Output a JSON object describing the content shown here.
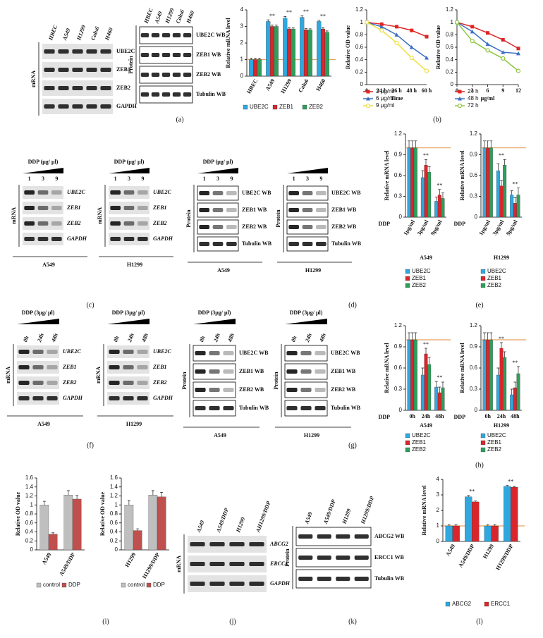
{
  "chart_data": [
    {
      "type": "bar",
      "ylabel": "Relative mRNA level",
      "categories": [
        "HBEC",
        "A549",
        "H1299",
        "Calu6",
        "H460"
      ],
      "series": [
        {
          "name": "UBE2C",
          "color": "#2ea8df",
          "values": [
            1,
            3.3,
            3.5,
            3.55,
            3.3
          ],
          "errors": [
            0.08,
            0.1,
            0.1,
            0.1,
            0.08
          ]
        },
        {
          "name": "ZEB1",
          "color": "#d9262c",
          "values": [
            1,
            3.0,
            2.85,
            2.8,
            2.85
          ],
          "errors": [
            0.08,
            0.08,
            0.08,
            0.08,
            0.08
          ]
        },
        {
          "name": "ZEB2",
          "color": "#2e9e5b",
          "values": [
            1,
            3.0,
            2.85,
            2.8,
            2.65
          ],
          "errors": [
            0.08,
            0.08,
            0.06,
            0.06,
            0.08
          ]
        }
      ],
      "ylim": [
        0,
        4
      ],
      "yticks": [
        0,
        1,
        2,
        3,
        4
      ],
      "reference_line": {
        "value": 1,
        "color": "#e8a15c"
      },
      "annotations": [
        {
          "text": "**",
          "category": "A549"
        },
        {
          "text": "**",
          "category": "H1299"
        },
        {
          "text": "**",
          "category": "Calu6"
        },
        {
          "text": "**",
          "category": "H460"
        }
      ]
    },
    {
      "type": "line",
      "ylabel": "Relative OD value",
      "xlabel": "Time",
      "categories": [
        "0",
        "24 h",
        "36 h",
        "48 h",
        "60 h"
      ],
      "ylim": [
        0,
        1.2
      ],
      "yticks": [
        0,
        0.2,
        0.4,
        0.6,
        0.8,
        1,
        1.2
      ],
      "series": [
        {
          "name": "3 μg/ml",
          "color": "#e02424",
          "marker": "square",
          "values": [
            1,
            0.97,
            0.93,
            0.87,
            0.77
          ]
        },
        {
          "name": "6 μg/ml",
          "color": "#3a6fc4",
          "marker": "triangle",
          "values": [
            1,
            0.93,
            0.8,
            0.6,
            0.43
          ]
        },
        {
          "name": "9 μg/ml",
          "color": "#eee040",
          "marker": "circle",
          "values": [
            1,
            0.87,
            0.67,
            0.43,
            0.22
          ]
        }
      ]
    },
    {
      "type": "line",
      "ylabel": "Relative OD value",
      "xlabel": "μg/ml",
      "x": [
        0,
        3,
        6,
        9,
        12
      ],
      "xlim": [
        0,
        12
      ],
      "xticks": [
        0,
        3,
        6,
        9,
        12
      ],
      "ylim": [
        0,
        1.2
      ],
      "yticks": [
        0,
        0.2,
        0.4,
        0.6,
        0.8,
        1,
        1.2
      ],
      "series": [
        {
          "name": "24 h",
          "color": "#e02424",
          "marker": "square",
          "values": [
            1,
            0.93,
            0.83,
            0.72,
            0.58
          ]
        },
        {
          "name": "48 h",
          "color": "#3a6fc4",
          "marker": "triangle",
          "values": [
            1,
            0.85,
            0.65,
            0.52,
            0.5
          ]
        },
        {
          "name": "72 h",
          "color": "#8dc63f",
          "marker": "circle",
          "values": [
            1,
            0.7,
            0.55,
            0.42,
            0.22
          ]
        }
      ]
    },
    {
      "type": "bar",
      "ylabel": "Relative mRNA level",
      "category_label": "DDP",
      "xlabel": "A549",
      "categories": [
        "1μg/ml",
        "3μg/ml",
        "9μg/ml"
      ],
      "series": [
        {
          "name": "UBE2C",
          "color": "#2ea8df",
          "values": [
            1,
            0.57,
            0.23
          ],
          "errors": [
            0.1,
            0.1,
            0.06
          ]
        },
        {
          "name": "ZEB1",
          "color": "#d9262c",
          "values": [
            1,
            0.75,
            0.32
          ],
          "errors": [
            0.1,
            0.08,
            0.08
          ]
        },
        {
          "name": "ZEB2",
          "color": "#2e9e5b",
          "values": [
            1,
            0.65,
            0.27
          ],
          "errors": [
            0.1,
            0.08,
            0.08
          ]
        }
      ],
      "ylim": [
        0,
        1.2
      ],
      "yticks": [
        0,
        0.3,
        0.6,
        0.9,
        1.2
      ],
      "reference_line": {
        "value": 1,
        "color": "#e8a15c"
      },
      "annotations": [
        {
          "text": "**",
          "category": "3μg/ml"
        },
        {
          "text": "**",
          "category": "9μg/ml"
        }
      ]
    },
    {
      "type": "bar",
      "ylabel": "Relative mRNA level",
      "category_label": "DDP",
      "xlabel": "H1299",
      "categories": [
        "1μg/ml",
        "3μg/ml",
        "9μg/ml"
      ],
      "series": [
        {
          "name": "UBE2C",
          "color": "#2ea8df",
          "values": [
            1,
            0.67,
            0.32
          ],
          "errors": [
            0.1,
            0.1,
            0.06
          ]
        },
        {
          "name": "ZEB1",
          "color": "#d9262c",
          "values": [
            1,
            0.45,
            0.2
          ],
          "errors": [
            0.1,
            0.08,
            0.08
          ]
        },
        {
          "name": "ZEB2",
          "color": "#2e9e5b",
          "values": [
            1,
            0.75,
            0.32
          ],
          "errors": [
            0.1,
            0.08,
            0.1
          ]
        }
      ],
      "ylim": [
        0,
        1.2
      ],
      "yticks": [
        0,
        0.3,
        0.6,
        0.9,
        1.2
      ],
      "reference_line": {
        "value": 1,
        "color": "#e8a15c"
      },
      "annotations": [
        {
          "text": "**",
          "category": "3μg/ml"
        },
        {
          "text": "**",
          "category": "9μg/ml"
        }
      ]
    },
    {
      "type": "bar",
      "ylabel": "Relative mRNA level",
      "category_label": "DDP",
      "xlabel": "A549",
      "categories": [
        "0h",
        "24h",
        "48h"
      ],
      "series": [
        {
          "name": "UBE2C",
          "color": "#2ea8df",
          "values": [
            1,
            0.5,
            0.33
          ],
          "errors": [
            0.1,
            0.1,
            0.08
          ]
        },
        {
          "name": "ZEB1",
          "color": "#d9262c",
          "values": [
            1,
            0.8,
            0.25
          ],
          "errors": [
            0.1,
            0.08,
            0.08
          ]
        },
        {
          "name": "ZEB2",
          "color": "#2e9e5b",
          "values": [
            1,
            0.65,
            0.32
          ],
          "errors": [
            0.1,
            0.1,
            0.08
          ]
        }
      ],
      "ylim": [
        0,
        1.2
      ],
      "yticks": [
        0,
        0.3,
        0.6,
        0.9,
        1.2
      ],
      "reference_line": {
        "value": 1,
        "color": "#e8a15c"
      },
      "annotations": [
        {
          "text": "**",
          "category": "24h"
        },
        {
          "text": "**",
          "category": "48h"
        }
      ]
    },
    {
      "type": "bar",
      "ylabel": "Relative mRNA level",
      "category_label": "DDP",
      "xlabel": "H1299",
      "categories": [
        "0h",
        "24h",
        "48h"
      ],
      "series": [
        {
          "name": "UBE2C",
          "color": "#2ea8df",
          "values": [
            1,
            0.5,
            0.22
          ],
          "errors": [
            0.1,
            0.1,
            0.08
          ]
        },
        {
          "name": "ZEB1",
          "color": "#d9262c",
          "values": [
            1,
            0.88,
            0.32
          ],
          "errors": [
            0.1,
            0.08,
            0.08
          ]
        },
        {
          "name": "ZEB2",
          "color": "#2e9e5b",
          "values": [
            1,
            0.75,
            0.52
          ],
          "errors": [
            0.1,
            0.08,
            0.1
          ]
        }
      ],
      "ylim": [
        0,
        1.2
      ],
      "yticks": [
        0,
        0.3,
        0.6,
        0.9,
        1.2
      ],
      "reference_line": {
        "value": 1,
        "color": "#e8a15c"
      },
      "annotations": [
        {
          "text": "**",
          "category": "24h"
        },
        {
          "text": "**",
          "category": "48h"
        }
      ]
    },
    {
      "type": "bar",
      "ylabel": "Relative OD value",
      "categories": [
        "A549",
        "A549/DDP"
      ],
      "series": [
        {
          "name": "control",
          "color": "#bfbfbf",
          "values": [
            1,
            1.22
          ],
          "errors": [
            0.08,
            0.1
          ]
        },
        {
          "name": "DDP",
          "color": "#c0504d",
          "values": [
            0.35,
            1.13
          ],
          "errors": [
            0.03,
            0.08
          ]
        }
      ],
      "ylim": [
        0,
        1.6
      ],
      "yticks": [
        0,
        0.2,
        0.4,
        0.6,
        0.8,
        1,
        1.2,
        1.4,
        1.6
      ]
    },
    {
      "type": "bar",
      "ylabel": "Relative OD value",
      "categories": [
        "H1299",
        "H1299/DDP"
      ],
      "series": [
        {
          "name": "control",
          "color": "#bfbfbf",
          "values": [
            1,
            1.22
          ],
          "errors": [
            0.1,
            0.1
          ]
        },
        {
          "name": "DDP",
          "color": "#c0504d",
          "values": [
            0.43,
            1.18
          ],
          "errors": [
            0.04,
            0.1
          ]
        }
      ],
      "ylim": [
        0,
        1.6
      ],
      "yticks": [
        0,
        0.2,
        0.4,
        0.6,
        0.8,
        1,
        1.2,
        1.4,
        1.6
      ]
    },
    {
      "type": "bar",
      "ylabel": "Relative mRNA level",
      "categories": [
        "A549",
        "A549/DDP",
        "H1299",
        "H1299/DDP"
      ],
      "series": [
        {
          "name": "ABCG2",
          "color": "#2ea8df",
          "values": [
            1,
            2.88,
            1,
            3.55
          ],
          "errors": [
            0.08,
            0.08,
            0.08,
            0.06
          ]
        },
        {
          "name": "ERCC1",
          "color": "#d9262c",
          "values": [
            1,
            2.55,
            1,
            3.5
          ],
          "errors": [
            0.08,
            0.06,
            0.08,
            0.05
          ]
        }
      ],
      "ylim": [
        0,
        4
      ],
      "yticks": [
        0,
        1,
        2,
        3,
        4
      ],
      "reference_line": {
        "value": 1,
        "color": "#e8a15c"
      },
      "annotations": [
        {
          "text": "**",
          "category": "A549/DDP"
        },
        {
          "text": "**",
          "category": "H1299/DDP"
        }
      ]
    }
  ],
  "blots": [
    {
      "type_label": "mRNA",
      "lanes": [
        "HBEC",
        "A549",
        "H1299",
        "Calu6",
        "H460"
      ],
      "rows": [
        "UBE2C",
        "ZEB1",
        "ZEB2",
        "GAPDH"
      ]
    },
    {
      "type_label": "Protein",
      "lanes": [
        "HBEC",
        "A549",
        "H1299",
        "Calu6",
        "H460"
      ],
      "rows": [
        "UBE2C WB",
        "ZEB1 WB",
        "ZEB2 WB",
        "Tubulin WB"
      ]
    },
    {
      "type_label": "mRNA",
      "dose_label": "DDP (μg/ μl)",
      "lanes": [
        "1",
        "3",
        "9"
      ],
      "rows": [
        "UBE2C",
        "ZEB1",
        "ZEB2",
        "GAPDH"
      ],
      "caption": "A549"
    },
    {
      "type_label": "mRNA",
      "dose_label": "DDP (μg/ μl)",
      "lanes": [
        "1",
        "3",
        "9"
      ],
      "rows": [
        "UBE2C",
        "ZEB1",
        "ZEB2",
        "GAPDH"
      ],
      "caption": "H1299"
    },
    {
      "type_label": "Protein",
      "dose_label": "DDP (μg/ μl)",
      "lanes": [
        "1",
        "3",
        "9"
      ],
      "rows": [
        "UBE2C WB",
        "ZEB1 WB",
        "ZEB2 WB",
        "Tubulin WB"
      ],
      "caption": "A549"
    },
    {
      "type_label": "Protein",
      "lanes": [
        "1",
        "3",
        "9"
      ],
      "rows": [
        "UBE2C WB",
        "ZEB1 WB",
        "ZEB2 WB",
        "Tubulin WB"
      ],
      "caption": "H1299"
    },
    {
      "type_label": "mRNA",
      "dose_label": "DDP (3μg/ μl)",
      "lanes": [
        "0h",
        "24h",
        "48h"
      ],
      "rows": [
        "UBE2C",
        "ZEB1",
        "ZEB2",
        "GAPDH"
      ],
      "caption": "A549"
    },
    {
      "type_label": "mRNA",
      "dose_label": "DDP (3μg/ μl)",
      "lanes": [
        "0h",
        "24h",
        "48h"
      ],
      "rows": [
        "UBE2C",
        "ZEB1",
        "ZEB2",
        "GAPDH"
      ],
      "caption": "H1299"
    },
    {
      "type_label": "Protein",
      "dose_label": "DDP (3μg/ μl)",
      "lanes": [
        "0h",
        "24h",
        "48h"
      ],
      "rows": [
        "UBE2C WB",
        "ZEB1 WB",
        "ZEB2 WB",
        "Tubulin WB"
      ],
      "caption": "A549"
    },
    {
      "type_label": "Protein",
      "dose_label": "DDP (3μg/ μl)",
      "lanes": [
        "0h",
        "24h",
        "48h"
      ],
      "rows": [
        "UBE2C WB",
        "ZEB1 WB",
        "ZEB2 WB",
        "Tubulin WB"
      ],
      "caption": "H1299"
    },
    {
      "type_label": "mRNA",
      "lanes": [
        "A549",
        "A549/DDP",
        "H1299",
        "AH1299/DDP"
      ],
      "rows": [
        "ABCG2",
        "ERCC1",
        "GAPDH"
      ]
    },
    {
      "type_label": "Protein",
      "lanes": [
        "A549",
        "A549/DDP",
        "H1299",
        "H1299/DDP"
      ],
      "rows": [
        "ABCG2 WB",
        "ERCC1 WB",
        "Tubulin WB"
      ]
    }
  ],
  "panel_labels": [
    "(a)",
    "(b)",
    "(c)",
    "(d)",
    "(e)",
    "(f)",
    "(g)",
    "(h)",
    "(i)",
    "(j)",
    "(k)",
    "(l)"
  ]
}
